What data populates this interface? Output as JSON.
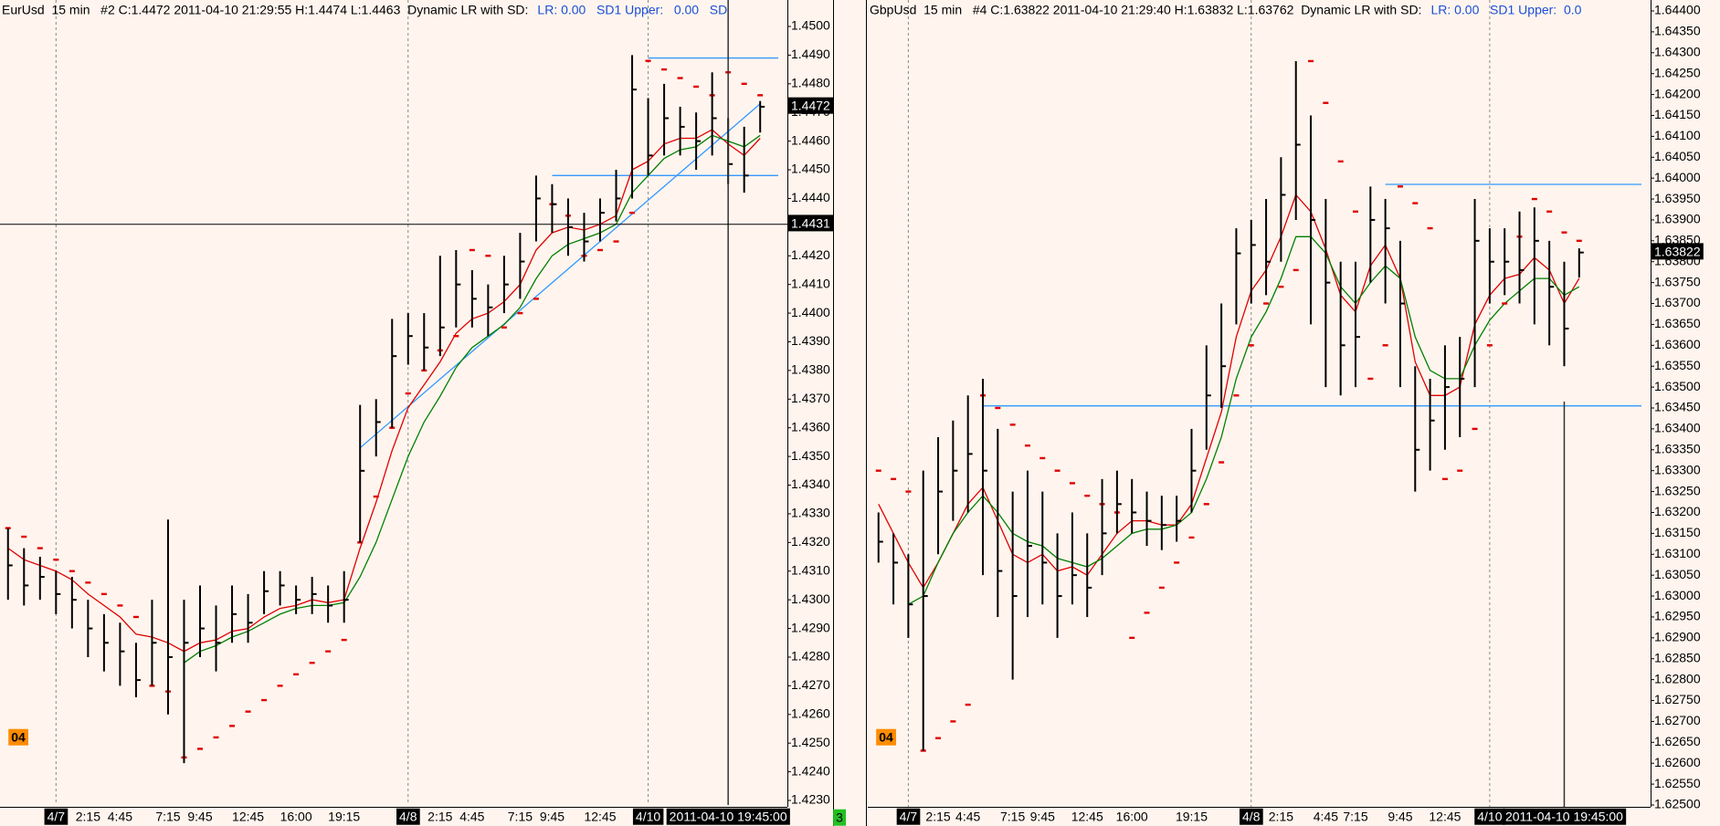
{
  "chart_data": [
    {
      "type": "ohlc",
      "title": "EurUsd  15 min   #2 C:1.4472 2011-04-10 21:29:55 H:1.4474 L:1.4463  Dynamic LR with SD:",
      "indicator": "LR: 0.00   SD1 Upper:   0.00   SD",
      "badge": "04",
      "status": "3",
      "categories": [
        null,
        null,
        null,
        "4/7",
        null,
        "2:15",
        null,
        "4:45",
        null,
        null,
        "7:15",
        null,
        "9:45",
        null,
        null,
        "12:45",
        null,
        null,
        "16:00",
        null,
        null,
        "19:15",
        null,
        null,
        null,
        "4/8",
        null,
        "2:15",
        null,
        "4:45",
        null,
        null,
        "7:15",
        null,
        "9:45",
        null,
        null,
        "12:45",
        null,
        null,
        "4/10",
        null,
        null,
        null,
        null,
        null,
        null,
        null
      ],
      "high": [
        1.4325,
        1.4318,
        1.4315,
        1.431,
        1.4308,
        1.43,
        1.4295,
        1.4292,
        1.4285,
        1.43,
        1.4328,
        1.43,
        1.4305,
        1.4298,
        1.4305,
        1.4302,
        1.431,
        1.431,
        1.4305,
        1.4308,
        1.4305,
        1.431,
        1.4368,
        1.437,
        1.4398,
        1.44,
        1.44,
        1.442,
        1.4422,
        1.4415,
        1.441,
        1.442,
        1.4428,
        1.4448,
        1.4445,
        1.444,
        1.4435,
        1.444,
        1.445,
        1.449,
        1.4475,
        1.448,
        1.4472,
        1.447,
        1.4484,
        1.4468,
        1.4465,
        1.4474
      ],
      "low": [
        1.43,
        1.4298,
        1.43,
        1.4295,
        1.429,
        1.428,
        1.4275,
        1.427,
        1.4266,
        1.427,
        1.426,
        1.4243,
        1.428,
        1.4275,
        1.4285,
        1.4285,
        1.4295,
        1.4298,
        1.4295,
        1.4295,
        1.4292,
        1.4292,
        1.432,
        1.435,
        1.436,
        1.4382,
        1.438,
        1.4385,
        1.4395,
        1.4395,
        1.4392,
        1.44,
        1.4405,
        1.4425,
        1.4428,
        1.442,
        1.4418,
        1.4425,
        1.4432,
        1.444,
        1.4448,
        1.4455,
        1.4455,
        1.445,
        1.4455,
        1.4445,
        1.4442,
        1.4463
      ],
      "close": [
        1.4312,
        1.4305,
        1.4308,
        1.4302,
        1.43,
        1.429,
        1.4285,
        1.4282,
        1.4272,
        1.4285,
        1.428,
        1.4285,
        1.429,
        1.4285,
        1.4295,
        1.4292,
        1.4303,
        1.4305,
        1.43,
        1.4302,
        1.4298,
        1.43,
        1.4345,
        1.4362,
        1.4385,
        1.4392,
        1.4388,
        1.4395,
        1.441,
        1.4405,
        1.4402,
        1.441,
        1.4418,
        1.444,
        1.4438,
        1.443,
        1.4425,
        1.4435,
        1.444,
        1.4478,
        1.4455,
        1.4468,
        1.4465,
        1.446,
        1.4468,
        1.4452,
        1.4448,
        1.4472
      ],
      "lines": [
        {
          "color": "#e00000",
          "values": [
            1.4318,
            1.4314,
            1.4312,
            1.431,
            1.4307,
            1.4302,
            1.4298,
            1.4294,
            1.4288,
            1.4287,
            1.4285,
            1.4282,
            1.4285,
            1.4286,
            1.4289,
            1.429,
            1.4294,
            1.4297,
            1.4298,
            1.43,
            1.4299,
            1.43,
            1.4318,
            1.4334,
            1.4352,
            1.4367,
            1.4375,
            1.4383,
            1.4393,
            1.4398,
            1.44,
            1.4404,
            1.441,
            1.4422,
            1.4428,
            1.443,
            1.4429,
            1.4431,
            1.4434,
            1.445,
            1.4453,
            1.4459,
            1.4461,
            1.4461,
            1.4464,
            1.4459,
            1.4455,
            1.4461
          ]
        },
        {
          "color": "#008000",
          "values": [
            null,
            null,
            null,
            null,
            null,
            null,
            null,
            null,
            null,
            null,
            null,
            1.4278,
            1.4282,
            1.4284,
            1.4287,
            1.4289,
            1.4292,
            1.4295,
            1.4297,
            1.4298,
            1.4298,
            1.4299,
            1.4308,
            1.432,
            1.4335,
            1.435,
            1.4362,
            1.4371,
            1.4381,
            1.4388,
            1.4392,
            1.4396,
            1.4402,
            1.4412,
            1.442,
            1.4424,
            1.4426,
            1.4428,
            1.4431,
            1.4442,
            1.4448,
            1.4454,
            1.4457,
            1.4458,
            1.4462,
            1.446,
            1.4458,
            1.4462
          ]
        }
      ],
      "sar": {
        "color": "#e00000",
        "values": [
          1.4325,
          1.4322,
          1.4318,
          1.4314,
          1.431,
          1.4306,
          1.4302,
          1.4298,
          1.4294,
          1.427,
          1.4268,
          1.4245,
          1.4248,
          1.4252,
          1.4256,
          1.4261,
          1.4265,
          1.427,
          1.4274,
          1.4278,
          1.4282,
          1.4286,
          1.432,
          1.4336,
          1.436,
          1.4372,
          1.438,
          1.4387,
          1.4392,
          1.4422,
          1.442,
          1.4395,
          1.44,
          1.4405,
          1.4438,
          1.4434,
          1.442,
          1.4422,
          1.4425,
          1.4435,
          1.4488,
          1.4485,
          1.4482,
          1.4479,
          1.4476,
          1.4484,
          1.448,
          1.4476
        ]
      },
      "levels": [
        {
          "value": 1.4489,
          "color": "#3399ff",
          "start": 40
        },
        {
          "value": 1.4448,
          "color": "#3399ff",
          "start": 34
        }
      ],
      "trendline": {
        "color": "#3399ff",
        "x": [
          22,
          47
        ],
        "values": [
          1.4353,
          1.4473
        ]
      },
      "cursor": {
        "index": 45,
        "label": "2011-04-10 19:45:00",
        "price": {
          "value": 1.4431,
          "label": "1.4431"
        }
      },
      "last": {
        "value": 1.4472,
        "label": "1.4472"
      },
      "ylim": [
        1.423,
        1.45
      ],
      "yticks": [
        {
          "value": 1.423,
          "label": "1.4230"
        },
        {
          "value": 1.424,
          "label": "1.4240"
        },
        {
          "value": 1.425,
          "label": "1.4250"
        },
        {
          "value": 1.426,
          "label": "1.4260"
        },
        {
          "value": 1.427,
          "label": "1.4270"
        },
        {
          "value": 1.428,
          "label": "1.4280"
        },
        {
          "value": 1.429,
          "label": "1.4290"
        },
        {
          "value": 1.43,
          "label": "1.4300"
        },
        {
          "value": 1.431,
          "label": "1.4310"
        },
        {
          "value": 1.432,
          "label": "1.4320"
        },
        {
          "value": 1.433,
          "label": "1.4330"
        },
        {
          "value": 1.434,
          "label": "1.4340"
        },
        {
          "value": 1.435,
          "label": "1.4350"
        },
        {
          "value": 1.436,
          "label": "1.4360"
        },
        {
          "value": 1.437,
          "label": "1.4370"
        },
        {
          "value": 1.438,
          "label": "1.4380"
        },
        {
          "value": 1.439,
          "label": "1.4390"
        },
        {
          "value": 1.44,
          "label": "1.4400"
        },
        {
          "value": 1.441,
          "label": "1.4410"
        },
        {
          "value": 1.442,
          "label": "1.4420"
        },
        {
          "value": 1.443,
          "label": "1.4430"
        },
        {
          "value": 1.444,
          "label": "1.4440"
        },
        {
          "value": 1.445,
          "label": "1.4450"
        },
        {
          "value": 1.446,
          "label": "1.4460"
        },
        {
          "value": 1.447,
          "label": "1.4470"
        },
        {
          "value": 1.448,
          "label": "1.4480"
        },
        {
          "value": 1.449,
          "label": "1.4490"
        },
        {
          "value": 1.45,
          "label": "1.4500"
        }
      ]
    },
    {
      "type": "ohlc",
      "title": "GbpUsd  15 min   #4 C:1.63822 2011-04-10 21:29:40 H:1.63832 L:1.63762  Dynamic LR with SD:",
      "indicator": "LR: 0.00   SD1 Upper:  0.0",
      "badge": "04",
      "categories": [
        null,
        null,
        "4/7",
        null,
        "2:15",
        null,
        "4:45",
        null,
        null,
        "7:15",
        null,
        "9:45",
        null,
        null,
        "12:45",
        null,
        null,
        "16:00",
        null,
        null,
        null,
        "19:15",
        null,
        null,
        null,
        "4/8",
        null,
        "2:15",
        null,
        null,
        "4:45",
        null,
        "7:15",
        null,
        null,
        "9:45",
        null,
        null,
        "12:45",
        null,
        null,
        "4/10",
        null,
        null,
        null,
        null,
        null,
        null
      ],
      "high": [
        1.632,
        1.6315,
        1.631,
        1.633,
        1.6338,
        1.6342,
        1.6348,
        1.6352,
        1.634,
        1.6325,
        1.633,
        1.6325,
        1.6315,
        1.632,
        1.6315,
        1.6328,
        1.633,
        1.6328,
        1.6325,
        1.6324,
        1.6324,
        1.634,
        1.636,
        1.637,
        1.6388,
        1.639,
        1.6395,
        1.6405,
        1.6428,
        1.6415,
        1.6395,
        1.638,
        1.638,
        1.6398,
        1.6395,
        1.6385,
        1.6355,
        1.6352,
        1.636,
        1.6362,
        1.6395,
        1.6388,
        1.6388,
        1.6392,
        1.6393,
        1.6385,
        1.638,
        1.63832
      ],
      "low": [
        1.6308,
        1.6298,
        1.629,
        1.6263,
        1.631,
        1.6318,
        1.632,
        1.6305,
        1.6295,
        1.628,
        1.6295,
        1.6298,
        1.629,
        1.6298,
        1.6295,
        1.6305,
        1.6315,
        1.6315,
        1.6312,
        1.6311,
        1.6313,
        1.632,
        1.6335,
        1.6345,
        1.6365,
        1.637,
        1.6372,
        1.638,
        1.639,
        1.6365,
        1.635,
        1.6348,
        1.635,
        1.6375,
        1.637,
        1.635,
        1.6325,
        1.633,
        1.6335,
        1.6338,
        1.635,
        1.637,
        1.6372,
        1.637,
        1.6365,
        1.636,
        1.6355,
        1.63762
      ],
      "close": [
        1.6313,
        1.6308,
        1.6298,
        1.63,
        1.6325,
        1.633,
        1.6334,
        1.633,
        1.6306,
        1.63,
        1.6312,
        1.6308,
        1.63,
        1.6305,
        1.6302,
        1.6315,
        1.6322,
        1.632,
        1.6318,
        1.6317,
        1.6318,
        1.633,
        1.6348,
        1.6355,
        1.6382,
        1.6384,
        1.638,
        1.6396,
        1.6408,
        1.639,
        1.6375,
        1.636,
        1.6362,
        1.639,
        1.6388,
        1.637,
        1.6335,
        1.6342,
        1.635,
        1.6352,
        1.6385,
        1.638,
        1.638,
        1.6378,
        1.6385,
        1.6374,
        1.6364,
        1.63822
      ],
      "lines": [
        {
          "color": "#e00000",
          "values": [
            1.6322,
            1.6315,
            1.6308,
            1.6302,
            1.6308,
            1.6315,
            1.6322,
            1.6326,
            1.6318,
            1.631,
            1.6308,
            1.631,
            1.6306,
            1.6307,
            1.6305,
            1.631,
            1.6315,
            1.6318,
            1.6318,
            1.6317,
            1.6317,
            1.6322,
            1.6333,
            1.6344,
            1.6362,
            1.6373,
            1.6378,
            1.6386,
            1.6396,
            1.6392,
            1.6383,
            1.6372,
            1.6368,
            1.6379,
            1.6384,
            1.6376,
            1.6356,
            1.6348,
            1.6348,
            1.635,
            1.6365,
            1.6372,
            1.6376,
            1.6377,
            1.6381,
            1.6378,
            1.637,
            1.6376
          ]
        },
        {
          "color": "#008000",
          "values": [
            null,
            null,
            1.6298,
            1.63,
            1.6308,
            1.6315,
            1.632,
            1.6324,
            1.632,
            1.6315,
            1.6313,
            1.6312,
            1.6309,
            1.6308,
            1.6307,
            1.6309,
            1.6312,
            1.6315,
            1.6316,
            1.6316,
            1.6317,
            1.632,
            1.6328,
            1.6338,
            1.6352,
            1.6362,
            1.6368,
            1.6376,
            1.6386,
            1.6386,
            1.6382,
            1.6374,
            1.637,
            1.6375,
            1.6379,
            1.6376,
            1.6362,
            1.6354,
            1.6352,
            1.6352,
            1.636,
            1.6366,
            1.637,
            1.6373,
            1.6376,
            1.6376,
            1.6372,
            1.6374
          ]
        }
      ],
      "sar": {
        "color": "#e00000",
        "values": [
          1.633,
          1.6328,
          1.6325,
          1.6263,
          1.6266,
          1.627,
          1.6274,
          1.6348,
          1.6345,
          1.6341,
          1.6336,
          1.6333,
          1.633,
          1.6327,
          1.6324,
          1.6322,
          1.632,
          1.629,
          1.6296,
          1.6302,
          1.6308,
          1.6314,
          1.6322,
          1.6332,
          1.6348,
          1.636,
          1.637,
          1.6374,
          1.6378,
          1.6428,
          1.6418,
          1.6404,
          1.6392,
          1.6352,
          1.636,
          1.6398,
          1.6394,
          1.6388,
          1.6328,
          1.633,
          1.634,
          1.636,
          1.637,
          1.6386,
          1.6395,
          1.6392,
          1.6387,
          1.6385
        ]
      },
      "levels": [
        {
          "value": 1.63985,
          "color": "#3399ff",
          "start": 34
        },
        {
          "value": 1.63455,
          "color": "#3399ff",
          "start": 7
        }
      ],
      "cursor": {
        "index": 46,
        "label": "2011-04-10 19:45:00"
      },
      "last": {
        "value": 1.63822,
        "label": "1.63822"
      },
      "ylim": [
        1.625,
        1.644
      ],
      "yticks": [
        {
          "value": 1.625,
          "label": "1.62500"
        },
        {
          "value": 1.6255,
          "label": "1.62550"
        },
        {
          "value": 1.626,
          "label": "1.62600"
        },
        {
          "value": 1.6265,
          "label": "1.62650"
        },
        {
          "value": 1.627,
          "label": "1.62700"
        },
        {
          "value": 1.6275,
          "label": "1.62750"
        },
        {
          "value": 1.628,
          "label": "1.62800"
        },
        {
          "value": 1.6285,
          "label": "1.62850"
        },
        {
          "value": 1.629,
          "label": "1.62900"
        },
        {
          "value": 1.6295,
          "label": "1.62950"
        },
        {
          "value": 1.63,
          "label": "1.63000"
        },
        {
          "value": 1.6305,
          "label": "1.63050"
        },
        {
          "value": 1.631,
          "label": "1.63100"
        },
        {
          "value": 1.6315,
          "label": "1.63150"
        },
        {
          "value": 1.632,
          "label": "1.63200"
        },
        {
          "value": 1.6325,
          "label": "1.63250"
        },
        {
          "value": 1.633,
          "label": "1.63300"
        },
        {
          "value": 1.6335,
          "label": "1.63350"
        },
        {
          "value": 1.634,
          "label": "1.63400"
        },
        {
          "value": 1.6345,
          "label": "1.63450"
        },
        {
          "value": 1.635,
          "label": "1.63500"
        },
        {
          "value": 1.6355,
          "label": "1.63550"
        },
        {
          "value": 1.636,
          "label": "1.63600"
        },
        {
          "value": 1.6365,
          "label": "1.63650"
        },
        {
          "value": 1.637,
          "label": "1.63700"
        },
        {
          "value": 1.6375,
          "label": "1.63750"
        },
        {
          "value": 1.638,
          "label": "1.63800"
        },
        {
          "value": 1.6385,
          "label": "1.63850"
        },
        {
          "value": 1.639,
          "label": "1.63900"
        },
        {
          "value": 1.6395,
          "label": "1.63950"
        },
        {
          "value": 1.64,
          "label": "1.64000"
        },
        {
          "value": 1.6405,
          "label": "1.64050"
        },
        {
          "value": 1.641,
          "label": "1.64100"
        },
        {
          "value": 1.6415,
          "label": "1.64150"
        },
        {
          "value": 1.642,
          "label": "1.64200"
        },
        {
          "value": 1.6425,
          "label": "1.64250"
        },
        {
          "value": 1.643,
          "label": "1.64300"
        },
        {
          "value": 1.6435,
          "label": "1.64350"
        },
        {
          "value": 1.644,
          "label": "1.64400"
        }
      ]
    }
  ]
}
